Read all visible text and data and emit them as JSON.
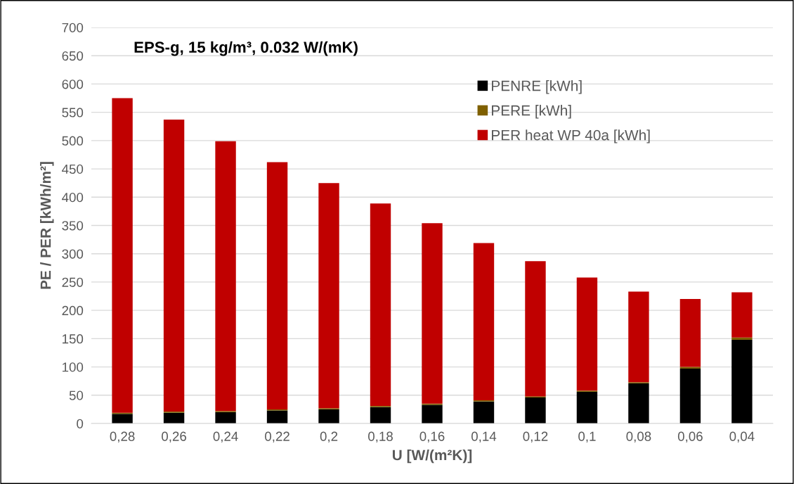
{
  "chart_data": {
    "type": "bar",
    "title": "EPS-g, 15 kg/m³, 0.032 W/(mK)",
    "xlabel": "U [W/(m²K)]",
    "ylabel": "PE / PER [kWh/m²]",
    "categories": [
      "0,28",
      "0,26",
      "0,24",
      "0,22",
      "0,2",
      "0,18",
      "0,16",
      "0,14",
      "0,12",
      "0,1",
      "0,08",
      "0,06",
      "0,04"
    ],
    "stacked": true,
    "series": [
      {
        "name": "PENRE [kWh]",
        "color": "#000000",
        "values": [
          17,
          19,
          20,
          23,
          25,
          29,
          33,
          39,
          46,
          56,
          71,
          97,
          148
        ]
      },
      {
        "name": "PERE [kWh]",
        "color": "#7f6000",
        "values": [
          2,
          2,
          2,
          2,
          2,
          2,
          2,
          2,
          2,
          2,
          2,
          3,
          4
        ]
      },
      {
        "name": "PER heat WP 40a [kWh]",
        "color": "#c00000",
        "values": [
          556,
          516,
          477,
          437,
          398,
          358,
          319,
          278,
          239,
          200,
          160,
          120,
          80
        ]
      }
    ],
    "ylim": [
      0,
      700
    ],
    "yticks": [
      0,
      50,
      100,
      150,
      200,
      250,
      300,
      350,
      400,
      450,
      500,
      550,
      600,
      650,
      700
    ],
    "grid": "y",
    "legend": "top right"
  }
}
